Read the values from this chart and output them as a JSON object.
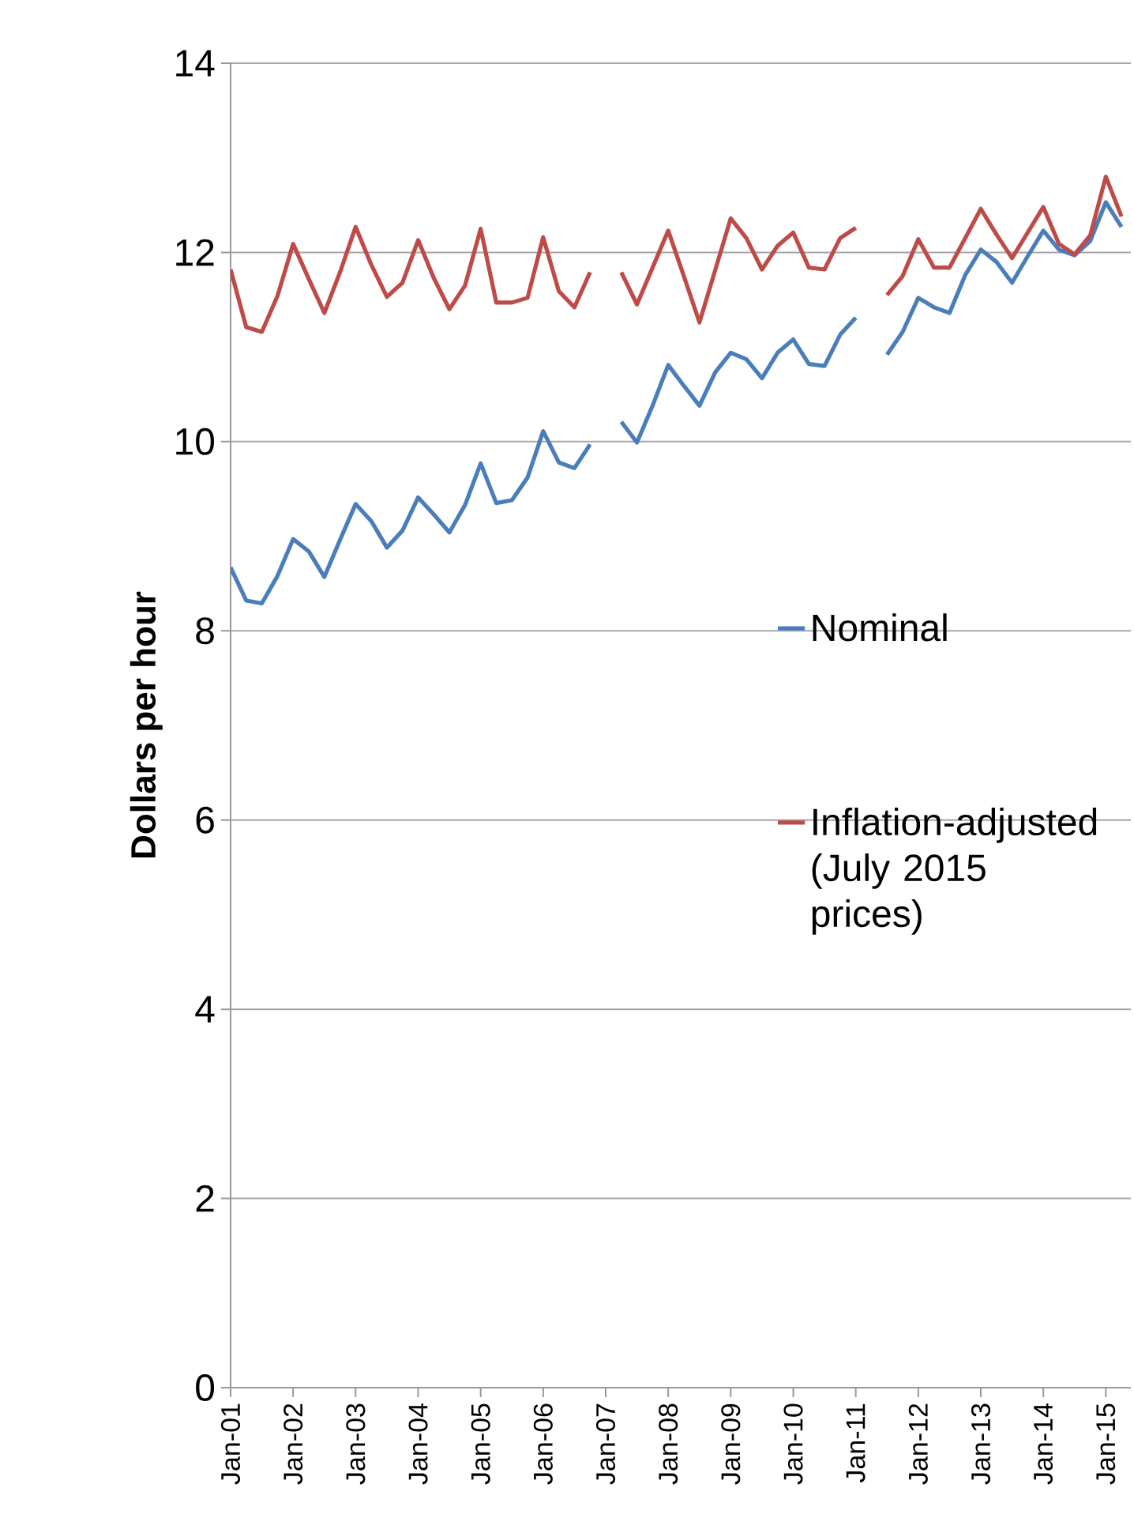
{
  "chart_data": {
    "type": "line",
    "ylabel": "Dollars per hour",
    "categories": [
      "Jan-01",
      null,
      null,
      null,
      "Jan-02",
      null,
      null,
      null,
      "Jan-03",
      null,
      null,
      null,
      "Jan-04",
      null,
      null,
      null,
      "Jan-05",
      null,
      null,
      null,
      "Jan-06",
      null,
      null,
      null,
      "Jan-07",
      null,
      null,
      null,
      "Jan-08",
      null,
      null,
      null,
      "Jan-09",
      null,
      null,
      null,
      "Jan-10",
      null,
      null,
      null,
      "Jan-11",
      null,
      null,
      null,
      "Jan-12",
      null,
      null,
      null,
      "Jan-13",
      null,
      null,
      null,
      "Jan-14",
      null,
      null,
      null,
      "Jan-15",
      null
    ],
    "series": [
      {
        "name": "Nominal",
        "color": "#4a7ebb",
        "values": [
          8.67,
          8.32,
          8.29,
          8.58,
          8.97,
          8.84,
          8.57,
          8.96,
          9.34,
          9.16,
          8.88,
          9.06,
          9.41,
          9.23,
          9.04,
          9.33,
          9.77,
          9.35,
          9.38,
          9.62,
          10.11,
          9.78,
          9.72,
          9.97,
          null,
          10.21,
          9.99,
          10.38,
          10.81,
          10.59,
          10.38,
          10.73,
          10.94,
          10.87,
          10.67,
          10.94,
          11.08,
          10.82,
          10.8,
          11.13,
          11.31,
          null,
          10.92,
          11.16,
          11.52,
          11.42,
          11.36,
          11.76,
          12.03,
          11.9,
          11.68,
          11.96,
          12.23,
          12.03,
          11.97,
          12.12,
          12.53,
          12.27
        ]
      },
      {
        "name": "Inflation-adjusted (July 2015 prices)",
        "color": "#be4b48",
        "values": [
          11.82,
          11.21,
          11.16,
          11.54,
          12.09,
          11.72,
          11.36,
          11.79,
          12.27,
          11.87,
          11.53,
          11.68,
          12.13,
          11.73,
          11.4,
          11.65,
          12.25,
          11.47,
          11.47,
          11.52,
          12.16,
          11.59,
          11.42,
          11.79,
          null,
          11.79,
          11.45,
          11.84,
          12.23,
          11.75,
          11.26,
          11.81,
          12.36,
          12.15,
          11.82,
          12.07,
          12.21,
          11.84,
          11.82,
          12.15,
          12.26,
          null,
          11.55,
          11.75,
          12.14,
          11.84,
          11.84,
          12.15,
          12.46,
          12.19,
          11.94,
          12.21,
          12.48,
          12.09,
          11.98,
          12.18,
          12.8,
          12.38
        ]
      }
    ],
    "ylim": [
      0,
      14
    ],
    "yticks": [
      0,
      2,
      4,
      6,
      8,
      10,
      12,
      14
    ],
    "grid": "y",
    "legend": "right",
    "marker": "none",
    "line_style": "solid"
  }
}
